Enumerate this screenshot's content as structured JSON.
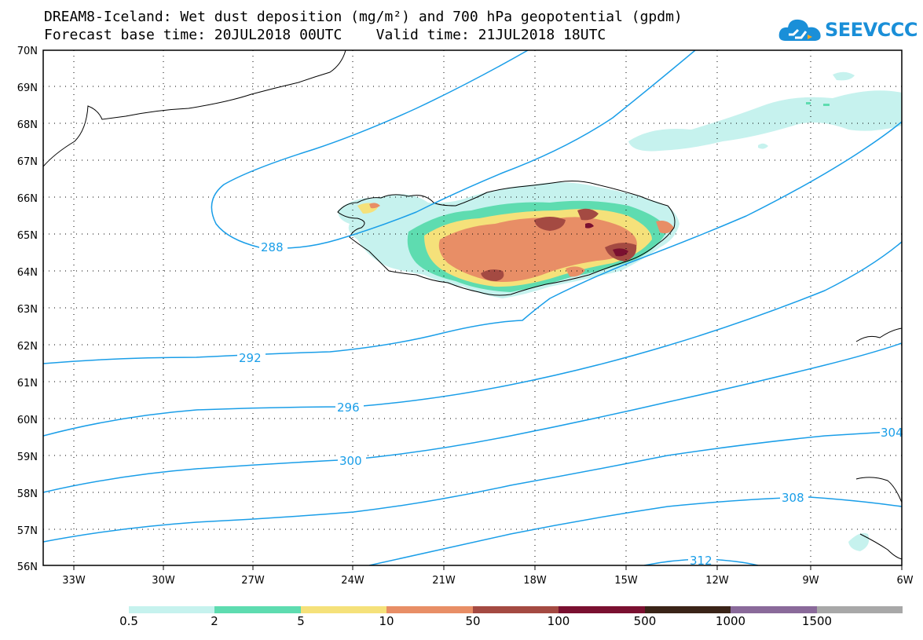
{
  "header": {
    "title_line1": "DREAM8-Iceland: Wet dust deposition (mg/m²) and 700 hPa geopotential (gpdm)",
    "title_line2": "Forecast base time: 20JUL2018 00UTC    Valid time: 21JUL2018 18UTC",
    "logo_text": "SEEVCCC",
    "logo_color": "#1a8fd8"
  },
  "map": {
    "projection": "lat-lon",
    "lat_range": [
      56,
      70
    ],
    "lon_range": [
      -34.5,
      -6
    ],
    "lat_labels": [
      "70N",
      "69N",
      "68N",
      "67N",
      "66N",
      "65N",
      "64N",
      "63N",
      "62N",
      "61N",
      "60N",
      "59N",
      "58N",
      "57N",
      "56N"
    ],
    "lon_labels": [
      "33W",
      "30W",
      "27W",
      "24W",
      "21W",
      "18W",
      "15W",
      "12W",
      "9W",
      "6W"
    ],
    "grid": "dotted",
    "contour_color": "#1a9ee8",
    "contour_labels": [
      "288",
      "292",
      "296",
      "300",
      "304",
      "308",
      "312"
    ]
  },
  "colorbar": {
    "labels": [
      "0.5",
      "2",
      "5",
      "10",
      "50",
      "100",
      "500",
      "1000",
      "1500"
    ],
    "colors": [
      "#c6f2ee",
      "#5edcb0",
      "#f5e17a",
      "#e88e66",
      "#a44a42",
      "#7a1030",
      "#3a2418",
      "#8a6a9a",
      "#a8a8a8"
    ]
  }
}
